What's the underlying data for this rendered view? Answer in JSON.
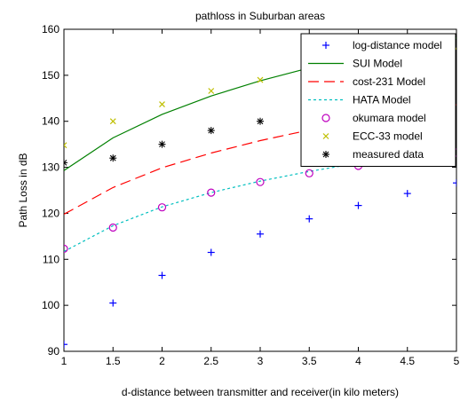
{
  "chart_data": {
    "type": "line",
    "title": "pathloss in Suburban areas",
    "xlabel": "d-distance between transmitter and receiver(in kilo meters)",
    "ylabel": "Path Loss in dB",
    "xlim": [
      1,
      5
    ],
    "ylim": [
      90,
      160
    ],
    "xticks": [
      "1",
      "1.5",
      "2",
      "2.5",
      "3",
      "3.5",
      "4",
      "4.5",
      "5"
    ],
    "yticks": [
      "90",
      "100",
      "110",
      "120",
      "130",
      "140",
      "150",
      "160"
    ],
    "grid": false,
    "legend_position": "top-right",
    "series": [
      {
        "name": "log-distance model",
        "style": "marker",
        "marker": "plus",
        "color": "#0000ff",
        "x": [
          1,
          1.5,
          2,
          2.5,
          3,
          3.5,
          4,
          4.5,
          5
        ],
        "y": [
          91.5,
          100.5,
          106.5,
          111.5,
          115.5,
          118.8,
          121.7,
          124.3,
          126.6
        ]
      },
      {
        "name": "SUI Model",
        "style": "line",
        "dash": "solid",
        "color": "#008000",
        "x": [
          1,
          1.5,
          2,
          2.5,
          3,
          3.5,
          4,
          4.5,
          5
        ],
        "y": [
          129.3,
          136.4,
          141.5,
          145.5,
          148.8,
          151.6,
          154.0,
          156.2,
          158.1
        ]
      },
      {
        "name": "cost-231 Model",
        "style": "line",
        "dash": "dashed",
        "color": "#ff0000",
        "x": [
          1,
          1.5,
          2,
          2.5,
          3,
          3.5,
          4,
          4.5,
          5
        ],
        "y": [
          119.8,
          125.6,
          129.9,
          133.1,
          135.8,
          138.1,
          140.2,
          142.0,
          143.6
        ]
      },
      {
        "name": "HATA Model",
        "style": "line",
        "dash": "dotted",
        "color": "#00bfbf",
        "x": [
          1,
          1.5,
          2,
          2.5,
          3,
          3.5,
          4,
          4.5,
          5
        ],
        "y": [
          111.7,
          117.3,
          121.4,
          124.5,
          127.0,
          129.1,
          130.9,
          132.4,
          133.7
        ]
      },
      {
        "name": "okumara model",
        "style": "marker",
        "marker": "circle",
        "color": "#bf00bf",
        "x": [
          1,
          1.5,
          2,
          2.5,
          3,
          3.5,
          4,
          4.5,
          5
        ],
        "y": [
          112.3,
          116.9,
          121.3,
          124.5,
          126.8,
          128.7,
          130.3,
          131.8,
          133.2
        ]
      },
      {
        "name": "ECC-33 model",
        "style": "marker",
        "marker": "x",
        "color": "#bfbf00",
        "x": [
          1,
          1.5,
          2,
          2.5,
          3,
          3.5,
          4,
          4.5,
          5
        ],
        "y": [
          134.8,
          140.0,
          143.7,
          146.6,
          149.0,
          151.0,
          152.8,
          154.3,
          155.8
        ]
      },
      {
        "name": "measured data",
        "style": "marker",
        "marker": "asterisk",
        "color": "#000000",
        "x": [
          1,
          1.5,
          2,
          2.5,
          3,
          3.5,
          4,
          4.5,
          5
        ],
        "y": [
          131.0,
          132.0,
          135.0,
          138.0,
          140.0,
          143.0,
          145.0,
          148.0,
          150.8
        ]
      }
    ]
  }
}
